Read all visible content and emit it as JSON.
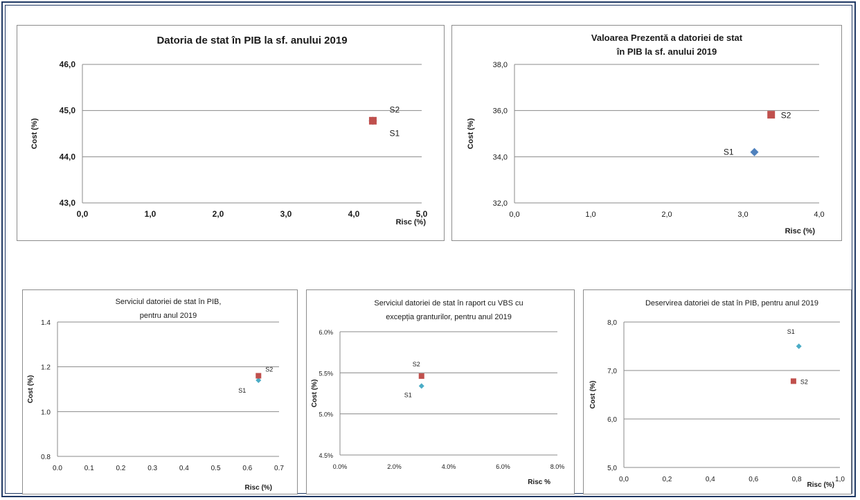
{
  "chart_data": [
    {
      "type": "scatter",
      "title": [
        "Datoria de stat în PIB la sf. anului 2019"
      ],
      "xlabel": "Risc (%)",
      "ylabel": "Cost (%)",
      "xlim": [
        0,
        5
      ],
      "ylim": [
        43,
        46
      ],
      "xticks": [
        "0,0",
        "1,0",
        "2,0",
        "3,0",
        "4,0",
        "5,0"
      ],
      "yticks": [
        "43,0",
        "44,0",
        "45,0",
        "46,0"
      ],
      "grid": "horizontal",
      "series": [
        {
          "name": "S1",
          "x": 4.28,
          "y": 44.78,
          "color": "#4f81bd",
          "marker": "diamond"
        },
        {
          "name": "S2",
          "x": 4.28,
          "y": 44.78,
          "color": "#c0504d",
          "marker": "square"
        }
      ]
    },
    {
      "type": "scatter",
      "title": [
        "Valoarea Prezentă a datoriei de stat",
        "în PIB la sf. anului 2019"
      ],
      "xlabel": "Risc (%)",
      "ylabel": "Cost (%)",
      "xlim": [
        0,
        4
      ],
      "ylim": [
        32,
        38
      ],
      "xticks": [
        "0,0",
        "1,0",
        "2,0",
        "3,0",
        "4,0"
      ],
      "yticks": [
        "32,0",
        "34,0",
        "36,0",
        "38,0"
      ],
      "grid": "horizontal",
      "series": [
        {
          "name": "S1",
          "x": 3.15,
          "y": 34.2,
          "color": "#4f81bd",
          "marker": "diamond"
        },
        {
          "name": "S2",
          "x": 3.37,
          "y": 35.82,
          "color": "#c0504d",
          "marker": "square"
        }
      ]
    },
    {
      "type": "scatter",
      "title": [
        "Serviciul datoriei de stat în PIB,",
        "pentru anul 2019"
      ],
      "xlabel": "Risc (%)",
      "ylabel": "Cost (%)",
      "xlim": [
        0,
        0.7
      ],
      "ylim": [
        0.8,
        1.4
      ],
      "xticks": [
        "0.0",
        "0.1",
        "0.2",
        "0.3",
        "0.4",
        "0.5",
        "0.6",
        "0.7"
      ],
      "yticks": [
        "0.8",
        "1.0",
        "1.2",
        "1.4"
      ],
      "grid": "horizontal",
      "series": [
        {
          "name": "S1",
          "x": 0.635,
          "y": 1.14,
          "color": "#4bacc6",
          "marker": "diamond"
        },
        {
          "name": "S2",
          "x": 0.635,
          "y": 1.16,
          "color": "#c0504d",
          "marker": "square"
        }
      ]
    },
    {
      "type": "scatter",
      "title": [
        "Serviciul datoriei de stat în raport cu VBS cu",
        "excepția granturilor, pentru anul 2019"
      ],
      "xlabel": "Risc %",
      "ylabel": "Cost (%)",
      "xlim": [
        0,
        8
      ],
      "ylim": [
        4.5,
        6.0
      ],
      "xticks": [
        "0.0%",
        "2.0%",
        "4.0%",
        "6.0%",
        "8.0%"
      ],
      "yticks": [
        "4.5%",
        "5.0%",
        "5.5%",
        "6.0%"
      ],
      "grid": "horizontal",
      "series": [
        {
          "name": "S1",
          "x": 3.0,
          "y": 5.34,
          "color": "#4bacc6",
          "marker": "diamond"
        },
        {
          "name": "S2",
          "x": 3.0,
          "y": 5.46,
          "color": "#c0504d",
          "marker": "square"
        }
      ]
    },
    {
      "type": "scatter",
      "title": [
        "Deservirea datoriei de stat în PIB, pentru anul 2019"
      ],
      "xlabel": "Risc (%)",
      "ylabel": "Cost (%)",
      "xlim": [
        0,
        1
      ],
      "ylim": [
        5,
        8
      ],
      "xticks": [
        "0,0",
        "0,2",
        "0,4",
        "0,6",
        "0,8",
        "1,0"
      ],
      "yticks": [
        "5,0",
        "6,0",
        "7,0",
        "8,0"
      ],
      "grid": "horizontal",
      "series": [
        {
          "name": "S1",
          "x": 0.81,
          "y": 7.5,
          "color": "#4bacc6",
          "marker": "diamond"
        },
        {
          "name": "S2",
          "x": 0.785,
          "y": 6.78,
          "color": "#c0504d",
          "marker": "square"
        }
      ]
    }
  ]
}
